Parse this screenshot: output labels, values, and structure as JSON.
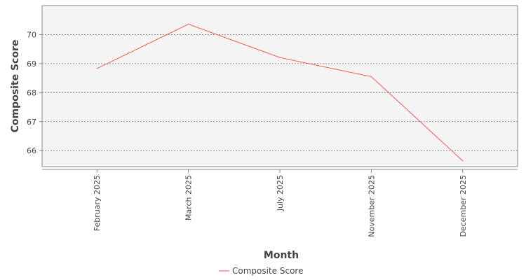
{
  "chart_data": {
    "type": "line",
    "title": "",
    "xlabel": "Month",
    "ylabel": "Composite Score",
    "categories": [
      "February 2025",
      "March 2025",
      "July 2025",
      "November 2025",
      "December 2025"
    ],
    "series": [
      {
        "name": "Composite Score",
        "values": [
          68.83,
          70.36,
          69.21,
          68.55,
          65.65
        ],
        "color": "#f05a4a"
      }
    ],
    "yticks": [
      66,
      67,
      68,
      69,
      70
    ],
    "ylim": [
      65.45,
      71.0
    ],
    "grid": true,
    "legend_position": "bottom-center",
    "plot_background": "#f4f4f4",
    "grid_color": "#777777"
  }
}
